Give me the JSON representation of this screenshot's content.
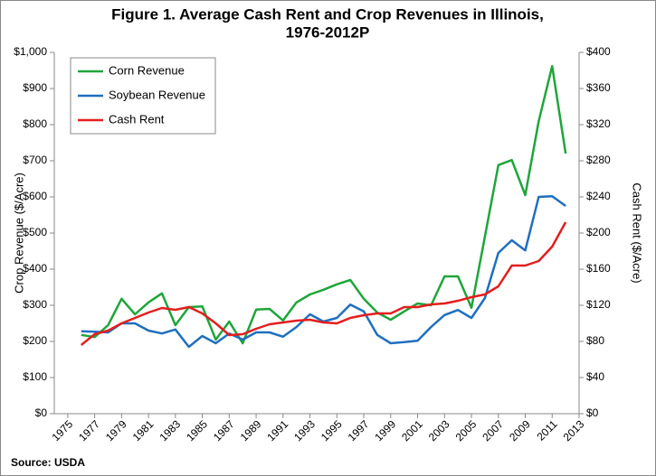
{
  "chart_data": {
    "type": "line",
    "title": "Figure 1. Average Cash Rent and Crop Revenues in Illinois,",
    "subtitle": "1976-2012P",
    "y_label": "Crop Revenue ($/Acre)",
    "y2_label": "Cash Rent ($/Acre)",
    "source": "Source: USDA",
    "x": [
      1976,
      1977,
      1978,
      1979,
      1980,
      1981,
      1982,
      1983,
      1984,
      1985,
      1986,
      1987,
      1988,
      1989,
      1990,
      1991,
      1992,
      1993,
      1994,
      1995,
      1996,
      1997,
      1998,
      1999,
      2000,
      2001,
      2002,
      2003,
      2004,
      2005,
      2006,
      2007,
      2008,
      2009,
      2010,
      2011,
      2012
    ],
    "series": [
      {
        "name": "Corn Revenue",
        "color": "#1fa53b",
        "values": [
          218,
          212,
          245,
          318,
          275,
          308,
          333,
          245,
          295,
          297,
          205,
          255,
          195,
          288,
          290,
          258,
          308,
          330,
          343,
          358,
          370,
          318,
          280,
          260,
          283,
          305,
          300,
          380,
          380,
          293,
          490,
          688,
          702,
          605,
          810,
          962,
          720
        ]
      },
      {
        "name": "Soybean Revenue",
        "color": "#1f6fbf",
        "values": [
          228,
          227,
          225,
          250,
          250,
          230,
          222,
          233,
          185,
          215,
          195,
          222,
          205,
          225,
          225,
          213,
          240,
          275,
          255,
          265,
          302,
          283,
          218,
          195,
          198,
          202,
          240,
          273,
          287,
          265,
          320,
          445,
          480,
          452,
          600,
          602,
          575
        ]
      },
      {
        "name": "Cash Rent",
        "color": "#e41e1e",
        "axis": "y2",
        "values": [
          76,
          88,
          92,
          100,
          106,
          112,
          117,
          115,
          118,
          111,
          100,
          87,
          88,
          94,
          99,
          101,
          103,
          104,
          101,
          100,
          106,
          109,
          111,
          111,
          118,
          118,
          121,
          122,
          125,
          129,
          132,
          141,
          164,
          164,
          169,
          185,
          212
        ]
      }
    ],
    "xlim": [
      1974,
      2013
    ],
    "xticks": [
      1975,
      1977,
      1979,
      1981,
      1983,
      1985,
      1987,
      1989,
      1991,
      1993,
      1995,
      1997,
      1999,
      2001,
      2003,
      2005,
      2007,
      2009,
      2011,
      2013
    ],
    "ylim": [
      0,
      1000
    ],
    "yticks": [
      {
        "value": 0,
        "label": "$0"
      },
      {
        "value": 100,
        "label": "$100"
      },
      {
        "value": 200,
        "label": "$200"
      },
      {
        "value": 300,
        "label": "$300"
      },
      {
        "value": 400,
        "label": "$400"
      },
      {
        "value": 500,
        "label": "$500"
      },
      {
        "value": 600,
        "label": "$600"
      },
      {
        "value": 700,
        "label": "$700"
      },
      {
        "value": 800,
        "label": "$800"
      },
      {
        "value": 900,
        "label": "$900"
      },
      {
        "value": 1000,
        "label": "$1,000"
      }
    ],
    "y2lim": [
      0,
      400
    ],
    "y2ticks": [
      {
        "value": 0,
        "label": "$0"
      },
      {
        "value": 40,
        "label": "$40"
      },
      {
        "value": 80,
        "label": "$80"
      },
      {
        "value": 120,
        "label": "$120"
      },
      {
        "value": 160,
        "label": "$160"
      },
      {
        "value": 200,
        "label": "$200"
      },
      {
        "value": 240,
        "label": "$240"
      },
      {
        "value": 280,
        "label": "$280"
      },
      {
        "value": 320,
        "label": "$320"
      },
      {
        "value": 360,
        "label": "$360"
      },
      {
        "value": 400,
        "label": "$400"
      }
    ],
    "legend": "upper left",
    "grid": false
  }
}
